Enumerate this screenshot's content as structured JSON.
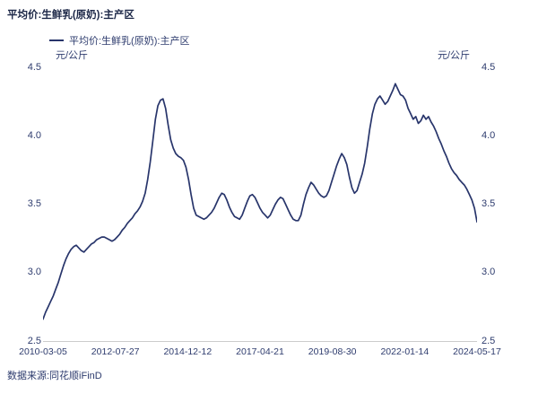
{
  "title": "平均价:生鲜乳(原奶):主产区",
  "legend": {
    "label": "平均价:生鲜乳(原奶):主产区"
  },
  "y_axis": {
    "unit_left": "元/公斤",
    "unit_right": "元/公斤",
    "tick_labels": [
      "4.5",
      "4.0",
      "3.5",
      "3.0",
      "2.5"
    ],
    "tick_values": [
      4.5,
      4.0,
      3.5,
      3.0,
      2.5
    ]
  },
  "footer": {
    "source": "数据来源:同花顺iFinD"
  },
  "colors": {
    "line": "#28356b",
    "text": "#2e3c6e",
    "title": "#1c2747",
    "axis": "#cccccc",
    "background": "#ffffff"
  },
  "chart_data": {
    "type": "line",
    "title": "平均价:生鲜乳(原奶):主产区",
    "xlabel": "",
    "ylabel": "元/公斤",
    "ylim": [
      2.5,
      4.5
    ],
    "grid": false,
    "legend_position": "top-left",
    "x_tick_labels": [
      "2010-03-05",
      "2012-07-27",
      "2014-12-12",
      "2017-04-21",
      "2019-08-30",
      "2022-01-14",
      "2024-05-17"
    ],
    "series": [
      {
        "name": "平均价:生鲜乳(原奶):主产区",
        "start": "2010-03",
        "end": "2024-05",
        "frequency": "monthly",
        "values": [
          2.66,
          2.71,
          2.75,
          2.79,
          2.83,
          2.88,
          2.93,
          2.99,
          3.05,
          3.1,
          3.14,
          3.17,
          3.19,
          3.2,
          3.18,
          3.16,
          3.15,
          3.17,
          3.19,
          3.21,
          3.22,
          3.24,
          3.25,
          3.26,
          3.26,
          3.25,
          3.24,
          3.23,
          3.24,
          3.26,
          3.28,
          3.31,
          3.33,
          3.36,
          3.38,
          3.4,
          3.43,
          3.45,
          3.48,
          3.52,
          3.58,
          3.68,
          3.81,
          3.96,
          4.12,
          4.22,
          4.26,
          4.27,
          4.2,
          4.08,
          3.97,
          3.91,
          3.87,
          3.85,
          3.84,
          3.82,
          3.77,
          3.68,
          3.57,
          3.47,
          3.42,
          3.41,
          3.4,
          3.39,
          3.4,
          3.42,
          3.44,
          3.47,
          3.51,
          3.55,
          3.58,
          3.57,
          3.53,
          3.48,
          3.44,
          3.41,
          3.4,
          3.39,
          3.42,
          3.47,
          3.52,
          3.56,
          3.57,
          3.55,
          3.51,
          3.47,
          3.44,
          3.42,
          3.4,
          3.42,
          3.46,
          3.5,
          3.53,
          3.55,
          3.54,
          3.5,
          3.46,
          3.42,
          3.39,
          3.38,
          3.38,
          3.42,
          3.5,
          3.57,
          3.62,
          3.66,
          3.64,
          3.61,
          3.58,
          3.56,
          3.55,
          3.56,
          3.6,
          3.66,
          3.72,
          3.78,
          3.83,
          3.87,
          3.84,
          3.79,
          3.7,
          3.62,
          3.58,
          3.6,
          3.66,
          3.72,
          3.8,
          3.92,
          4.05,
          4.16,
          4.23,
          4.27,
          4.29,
          4.26,
          4.23,
          4.25,
          4.29,
          4.33,
          4.38,
          4.34,
          4.3,
          4.29,
          4.26,
          4.2,
          4.16,
          4.12,
          4.14,
          4.09,
          4.11,
          4.15,
          4.12,
          4.14,
          4.1,
          4.07,
          4.03,
          3.98,
          3.94,
          3.89,
          3.85,
          3.8,
          3.76,
          3.73,
          3.71,
          3.68,
          3.66,
          3.64,
          3.61,
          3.57,
          3.53,
          3.47,
          3.37
        ]
      }
    ]
  }
}
